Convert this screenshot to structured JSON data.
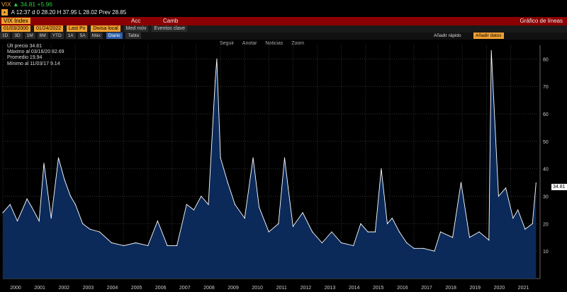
{
  "header": {
    "ticker": "VIX",
    "last": "34.81",
    "change": "+5.96",
    "ts_label": "A 12:37 d",
    "open": "0 28.20",
    "high": "H 37.95",
    "low": "L 28.02",
    "prev": "Prev 28.85"
  },
  "titlebar": {
    "security": "VIX Index",
    "actions": "Acc",
    "currency": "Camb",
    "chart_type": "Gráfico de líneas"
  },
  "controls": {
    "start_date": "01/03/2000",
    "end_date": "01/24/2022",
    "last_px": "Last Px",
    "local": "Divisa local",
    "mov_avg": "Med móv",
    "events": "Eventos clave",
    "periods": [
      "1D",
      "3D",
      "1M",
      "6M",
      "YTD",
      "1A",
      "5A",
      "Máx"
    ],
    "frequency": "Diario",
    "table": "Tabla",
    "quick_add": "Añadir rápido",
    "add_data": "Añadir datos"
  },
  "toolbar": {
    "follow": "Seguir",
    "annotate": "Anotar",
    "news": "Noticias",
    "zoom": "Zoom"
  },
  "legend": {
    "last_label": "Últ precio",
    "last_value": "34.81",
    "max_label": "Máximo al 03/16/20",
    "max_value": "82.69",
    "avg_label": "Promedio",
    "avg_value": "19.94",
    "min_label": "Mínimo al 11/03/17",
    "min_value": "9.14"
  },
  "colors": {
    "line": "#ffffff",
    "fill": "#0b2a5a",
    "bg": "#000000",
    "accent": "#f0a030"
  },
  "chart_data": {
    "type": "area",
    "title": "",
    "xlabel": "",
    "ylabel": "",
    "ylim": [
      0,
      85
    ],
    "yticks": [
      10,
      20,
      30,
      40,
      50,
      60,
      70,
      80
    ],
    "xticks": [
      "2000",
      "2001",
      "2002",
      "2003",
      "2004",
      "2005",
      "2006",
      "2007",
      "2008",
      "2009",
      "2010",
      "2011",
      "2012",
      "2013",
      "2014",
      "2015",
      "2016",
      "2017",
      "2018",
      "2019",
      "2020",
      "2021"
    ],
    "series": [
      {
        "name": "",
        "x": [
          2000.0,
          2000.3,
          2000.6,
          2001.0,
          2001.2,
          2001.5,
          2001.7,
          2002.0,
          2002.3,
          2002.55,
          2002.8,
          2003.0,
          2003.3,
          2003.6,
          2004.0,
          2004.5,
          2005.0,
          2005.5,
          2006.0,
          2006.4,
          2006.8,
          2007.2,
          2007.6,
          2007.9,
          2008.2,
          2008.5,
          2008.78,
          2008.85,
          2009.0,
          2009.3,
          2009.6,
          2010.0,
          2010.35,
          2010.6,
          2011.0,
          2011.4,
          2011.65,
          2011.8,
          2012.0,
          2012.4,
          2012.8,
          2013.2,
          2013.6,
          2014.0,
          2014.5,
          2014.8,
          2015.1,
          2015.4,
          2015.65,
          2015.9,
          2016.1,
          2016.4,
          2016.7,
          2017.0,
          2017.4,
          2017.85,
          2018.1,
          2018.6,
          2018.95,
          2019.3,
          2019.7,
          2020.1,
          2020.2,
          2020.5,
          2020.8,
          2021.1,
          2021.3,
          2021.6,
          2021.9,
          2022.05
        ],
        "values": [
          24,
          27,
          21,
          29,
          26,
          21,
          42,
          22,
          44,
          36,
          30,
          27,
          20,
          18,
          17,
          13,
          12,
          13,
          12,
          21,
          12,
          12,
          27,
          25,
          30,
          27,
          72,
          80,
          44,
          35,
          27,
          22,
          44,
          26,
          17,
          20,
          44,
          33,
          19,
          24,
          17,
          13,
          17,
          13,
          12,
          20,
          17,
          17,
          40,
          20,
          22,
          17,
          13,
          11,
          11,
          10,
          17,
          15,
          35,
          15,
          17,
          14,
          83,
          30,
          33,
          22,
          25,
          18,
          20,
          34.81
        ]
      }
    ]
  }
}
